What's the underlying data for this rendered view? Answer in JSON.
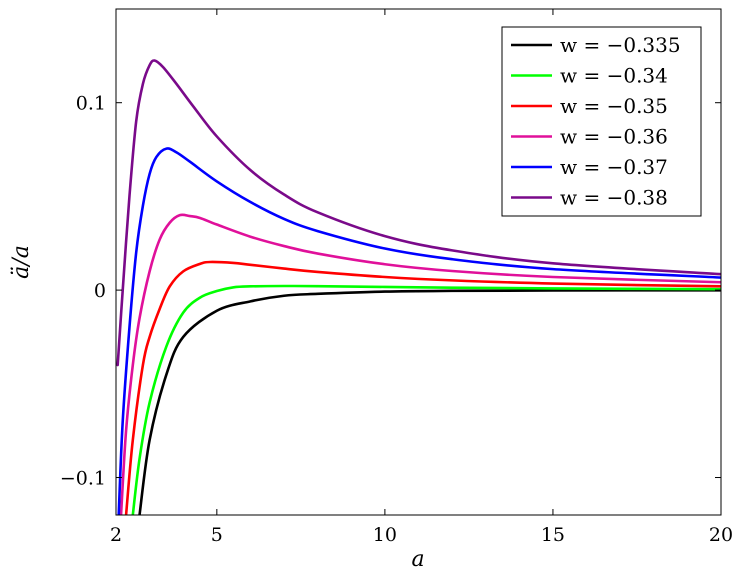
{
  "chart_data": {
    "type": "line",
    "xlabel": "a",
    "ylabel": "ä/a",
    "xlim": [
      2,
      20
    ],
    "ylim": [
      -0.12,
      0.15
    ],
    "xticks": [
      2,
      5,
      10,
      15,
      20
    ],
    "xtick_labels": [
      "2",
      "5",
      "10",
      "15",
      "20"
    ],
    "yticks": [
      -0.1,
      0,
      0.1
    ],
    "ytick_labels": [
      "−0.1",
      "0",
      "0.1"
    ],
    "grid": false,
    "legend_position": "top-right",
    "series": [
      {
        "name": "w = −0.335",
        "color": "#000000",
        "points": [
          [
            2.7,
            -0.12
          ],
          [
            3.0,
            -0.08
          ],
          [
            3.5,
            -0.045
          ],
          [
            4.0,
            -0.025
          ],
          [
            5.0,
            -0.011
          ],
          [
            6.0,
            -0.006
          ],
          [
            7.0,
            -0.003
          ],
          [
            8.0,
            -0.002
          ],
          [
            10.0,
            -0.0008
          ],
          [
            12.0,
            -0.0004
          ],
          [
            15.0,
            -0.0002
          ],
          [
            20.0,
            -0.0001
          ]
        ]
      },
      {
        "name": "w = −0.34",
        "color": "#00ff00",
        "points": [
          [
            2.5,
            -0.12
          ],
          [
            2.7,
            -0.09
          ],
          [
            3.0,
            -0.06
          ],
          [
            3.5,
            -0.03
          ],
          [
            4.0,
            -0.012
          ],
          [
            4.5,
            -0.004
          ],
          [
            5.0,
            -0.0005
          ],
          [
            5.5,
            0.0015
          ],
          [
            6.0,
            0.002
          ],
          [
            7.0,
            0.0022
          ],
          [
            8.0,
            0.0021
          ],
          [
            10.0,
            0.0017
          ],
          [
            12.0,
            0.0013
          ],
          [
            15.0,
            0.0009
          ],
          [
            20.0,
            0.0005
          ]
        ]
      },
      {
        "name": "w = −0.35",
        "color": "#ff0000",
        "points": [
          [
            2.3,
            -0.12
          ],
          [
            2.5,
            -0.08
          ],
          [
            2.8,
            -0.04
          ],
          [
            3.0,
            -0.025
          ],
          [
            3.3,
            -0.01
          ],
          [
            3.6,
            0.002
          ],
          [
            4.0,
            0.01
          ],
          [
            4.5,
            0.014
          ],
          [
            4.8,
            0.015
          ],
          [
            5.5,
            0.0145
          ],
          [
            6.0,
            0.0135
          ],
          [
            7.0,
            0.0115
          ],
          [
            8.0,
            0.0097
          ],
          [
            10.0,
            0.007
          ],
          [
            12.0,
            0.0052
          ],
          [
            15.0,
            0.0035
          ],
          [
            20.0,
            0.002
          ]
        ]
      },
      {
        "name": "w = −0.36",
        "color": "#e0109a",
        "points": [
          [
            2.15,
            -0.12
          ],
          [
            2.3,
            -0.075
          ],
          [
            2.5,
            -0.04
          ],
          [
            2.7,
            -0.015
          ],
          [
            3.0,
            0.01
          ],
          [
            3.3,
            0.027
          ],
          [
            3.6,
            0.036
          ],
          [
            3.9,
            0.04
          ],
          [
            4.2,
            0.0395
          ],
          [
            4.5,
            0.0385
          ],
          [
            5.0,
            0.035
          ],
          [
            6.0,
            0.0285
          ],
          [
            7.0,
            0.0235
          ],
          [
            8.0,
            0.0195
          ],
          [
            10.0,
            0.0138
          ],
          [
            12.0,
            0.0102
          ],
          [
            15.0,
            0.007
          ],
          [
            20.0,
            0.0042
          ]
        ]
      },
      {
        "name": "w = −0.37",
        "color": "#0000ff",
        "points": [
          [
            2.08,
            -0.12
          ],
          [
            2.2,
            -0.07
          ],
          [
            2.4,
            -0.02
          ],
          [
            2.6,
            0.02
          ],
          [
            2.8,
            0.045
          ],
          [
            3.0,
            0.062
          ],
          [
            3.2,
            0.071
          ],
          [
            3.5,
            0.0755
          ],
          [
            3.8,
            0.0735
          ],
          [
            4.2,
            0.0685
          ],
          [
            5.0,
            0.058
          ],
          [
            6.0,
            0.047
          ],
          [
            7.0,
            0.038
          ],
          [
            8.0,
            0.0315
          ],
          [
            10.0,
            0.0222
          ],
          [
            12.0,
            0.0165
          ],
          [
            15.0,
            0.0112
          ],
          [
            20.0,
            0.0067
          ]
        ]
      },
      {
        "name": "w = −0.38",
        "color": "#7a0a8a",
        "points": [
          [
            2.05,
            -0.04
          ],
          [
            2.2,
            0.0
          ],
          [
            2.4,
            0.05
          ],
          [
            2.6,
            0.09
          ],
          [
            2.8,
            0.11
          ],
          [
            3.0,
            0.12
          ],
          [
            3.15,
            0.1225
          ],
          [
            3.4,
            0.119
          ],
          [
            3.8,
            0.11
          ],
          [
            4.3,
            0.098
          ],
          [
            5.0,
            0.082
          ],
          [
            6.0,
            0.064
          ],
          [
            7.0,
            0.051
          ],
          [
            8.0,
            0.0415
          ],
          [
            10.0,
            0.0288
          ],
          [
            12.0,
            0.0212
          ],
          [
            15.0,
            0.0143
          ],
          [
            20.0,
            0.0085
          ]
        ]
      }
    ]
  }
}
